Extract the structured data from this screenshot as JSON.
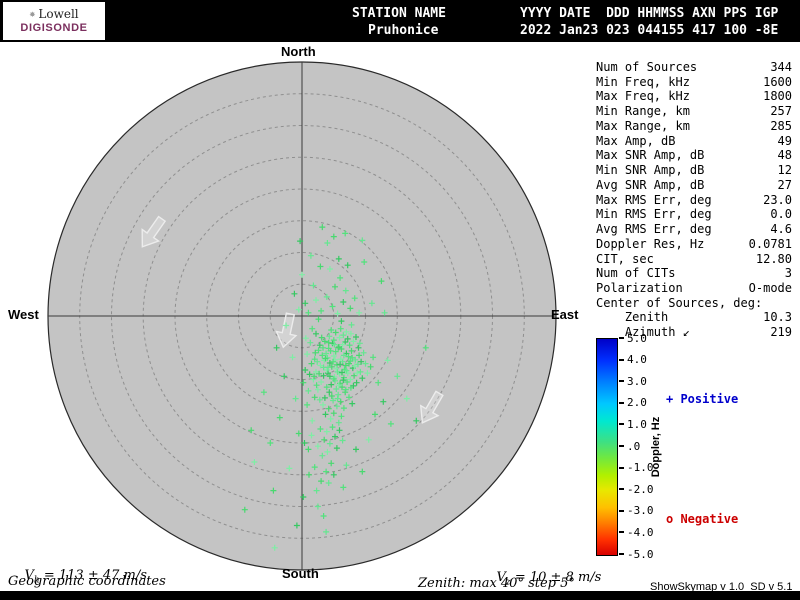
{
  "header": {
    "logo_line1": "Lowell",
    "logo_line2": "DIGISONDE",
    "station_label": "STATION NAME",
    "station_value": "Pruhonice",
    "time_label": "YYYY DATE  DDD HHMMSS AXN PPS IGP",
    "time_value": "2022 Jan23 023 044155 417 100 -8E"
  },
  "stats": {
    "rows": [
      {
        "label": "Num of Sources",
        "value": "344"
      },
      {
        "label": "Min Freq, kHz",
        "value": "1600"
      },
      {
        "label": "Max Freq, kHz",
        "value": "1800"
      },
      {
        "label": "Min Range, km",
        "value": "257"
      },
      {
        "label": "Max Range, km",
        "value": "285"
      },
      {
        "label": "Max Amp, dB",
        "value": "49"
      },
      {
        "label": "Max SNR Amp, dB",
        "value": "48"
      },
      {
        "label": "Min SNR Amp, dB",
        "value": "12"
      },
      {
        "label": "Avg SNR Amp, dB",
        "value": "27"
      },
      {
        "label": "Max RMS Err, deg",
        "value": "23.0"
      },
      {
        "label": "Min RMS Err, deg",
        "value": "0.0"
      },
      {
        "label": "Avg RMS Err, deg",
        "value": "4.6"
      },
      {
        "label": "Doppler Res, Hz",
        "value": "0.0781"
      },
      {
        "label": "CIT, sec",
        "value": "12.80"
      },
      {
        "label": "Num of CITs",
        "value": "3"
      },
      {
        "label": "Polarization",
        "value": "O-mode"
      },
      {
        "label": "Center of Sources, deg:",
        "value": ""
      },
      {
        "label": "    Zenith",
        "value": "10.3"
      },
      {
        "label": "    Azimuth ↙",
        "value": "219"
      }
    ]
  },
  "footer": {
    "vh_symbol": "V",
    "vh_sub": "h",
    "vh_value": "= 113 ± 47 m/s",
    "vz_symbol": "V",
    "vz_sub": "z",
    "vz_value": "= 10 ± 8 m/s",
    "coordinates_label": "Geographic coordinates",
    "zenith_range_label": "Zenith: max 40° step 5°",
    "version_label": "ShowSkymap v 1.0  SD v 5.1"
  },
  "chart_data": {
    "type": "scatter",
    "projection": "polar-skymap",
    "title": "",
    "compass": {
      "north": "North",
      "south": "South",
      "east": "East",
      "west": "West"
    },
    "zenith_max_deg": 40,
    "zenith_step_deg": 5,
    "marker": "+",
    "palette": [
      "#52e27c",
      "#7eeea4",
      "#36c862",
      "#65e690",
      "#48d96f"
    ],
    "colorbar": {
      "label": "Doppler, Hz",
      "min": -5.0,
      "max": 5.0,
      "ticks": [
        "5.0",
        "4.0",
        "3.0",
        "2.0",
        "1.0",
        ".0",
        "-1.0",
        "-2.0",
        "-3.0",
        "-4.0",
        "-5.0"
      ],
      "positive_label": "+ Positive",
      "negative_label": "o Negative",
      "positive_color": "#0000cc",
      "negative_color": "#cc0000"
    },
    "points_units": "degrees offset from zenith center [east, north]",
    "points": [
      [
        4.2,
        -5.1
      ],
      [
        5.0,
        -6.3
      ],
      [
        5.8,
        -4.9
      ],
      [
        6.4,
        -7.2
      ],
      [
        4.7,
        -8.0
      ],
      [
        5.3,
        -5.6
      ],
      [
        6.1,
        -6.8
      ],
      [
        7.0,
        -5.9
      ],
      [
        4.0,
        -6.6
      ],
      [
        5.5,
        -7.7
      ],
      [
        6.7,
        -8.4
      ],
      [
        5.9,
        -9.1
      ],
      [
        4.4,
        -7.4
      ],
      [
        3.8,
        -5.9
      ],
      [
        6.2,
        -5.2
      ],
      [
        7.3,
        -6.4
      ],
      [
        5.1,
        -9.6
      ],
      [
        4.8,
        -4.3
      ],
      [
        5.6,
        -8.8
      ],
      [
        6.9,
        -7.8
      ],
      [
        7.6,
        -7.1
      ],
      [
        3.5,
        -7.0
      ],
      [
        4.1,
        -9.0
      ],
      [
        5.2,
        -10.2
      ],
      [
        6.0,
        -10.6
      ],
      [
        6.6,
        -9.7
      ],
      [
        7.2,
        -9.0
      ],
      [
        8.0,
        -8.2
      ],
      [
        8.4,
        -6.9
      ],
      [
        7.8,
        -5.5
      ],
      [
        3.2,
        -6.2
      ],
      [
        3.9,
        -8.5
      ],
      [
        4.6,
        -10.8
      ],
      [
        5.4,
        -11.5
      ],
      [
        6.3,
        -11.2
      ],
      [
        7.1,
        -10.4
      ],
      [
        2.9,
        -7.8
      ],
      [
        3.4,
        -9.4
      ],
      [
        8.8,
        -7.6
      ],
      [
        8.2,
        -9.4
      ],
      [
        2.6,
        -5.4
      ],
      [
        3.0,
        -10.4
      ],
      [
        4.3,
        -12.0
      ],
      [
        5.7,
        -12.4
      ],
      [
        6.8,
        -12.0
      ],
      [
        7.7,
        -11.3
      ],
      [
        2.2,
        -8.8
      ],
      [
        8.6,
        -10.5
      ],
      [
        9.2,
        -8.8
      ],
      [
        9.0,
        -6.2
      ],
      [
        2.0,
        -6.8
      ],
      [
        2.5,
        -11.6
      ],
      [
        3.6,
        -12.9
      ],
      [
        4.9,
        -13.3
      ],
      [
        6.1,
        -13.5
      ],
      [
        7.4,
        -12.8
      ],
      [
        1.8,
        -10.0
      ],
      [
        9.5,
        -9.8
      ],
      [
        10.0,
        -7.5
      ],
      [
        1.5,
        -7.5
      ],
      [
        5.0,
        -3.8
      ],
      [
        5.9,
        -3.4
      ],
      [
        6.8,
        -4.1
      ],
      [
        4.3,
        -3.2
      ],
      [
        3.6,
        -4.0
      ],
      [
        7.5,
        -4.6
      ],
      [
        8.1,
        -4.0
      ],
      [
        2.8,
        -4.6
      ],
      [
        6.5,
        -3.0
      ],
      [
        5.3,
        -2.6
      ],
      [
        4.6,
        -2.2
      ],
      [
        7.0,
        -2.5
      ],
      [
        8.9,
        -5.0
      ],
      [
        9.7,
        -5.8
      ],
      [
        3.1,
        -3.4
      ],
      [
        2.3,
        -10.9
      ],
      [
        10.3,
        -9.0
      ],
      [
        1.2,
        -9.2
      ],
      [
        5.5,
        -14.2
      ],
      [
        4.2,
        -14.6
      ],
      [
        6.6,
        -14.5
      ],
      [
        3.3,
        -14.0
      ],
      [
        7.9,
        -13.8
      ],
      [
        2.8,
        -13.2
      ],
      [
        5.0,
        -15.3
      ],
      [
        6.2,
        -15.8
      ],
      [
        4.5,
        -16.2
      ],
      [
        3.7,
        -15.5
      ],
      [
        5.8,
        -16.8
      ],
      [
        10.8,
        -8.0
      ],
      [
        11.2,
        -6.5
      ],
      [
        0.8,
        -6.0
      ],
      [
        0.5,
        -8.5
      ],
      [
        1.0,
        -11.8
      ],
      [
        2.0,
        -12.8
      ],
      [
        4.5,
        -5.5
      ],
      [
        5.2,
        -6.9
      ],
      [
        6.0,
        -7.6
      ],
      [
        6.6,
        -6.2
      ],
      [
        5.7,
        -5.0
      ],
      [
        4.9,
        -7.2
      ],
      [
        5.4,
        -8.3
      ],
      [
        6.3,
        -8.9
      ],
      [
        4.1,
        -8.1
      ],
      [
        3.7,
        -6.7
      ],
      [
        5.0,
        -9.9
      ],
      [
        5.8,
        -10.9
      ],
      [
        6.5,
        -10.1
      ],
      [
        7.0,
        -8.6
      ],
      [
        7.4,
        -7.5
      ],
      [
        7.9,
        -6.6
      ],
      [
        8.3,
        -7.9
      ],
      [
        4.4,
        -9.5
      ],
      [
        3.4,
        -8.1
      ],
      [
        2.7,
        -9.1
      ],
      [
        6.9,
        -11.6
      ],
      [
        7.6,
        -10.0
      ],
      [
        8.1,
        -11.0
      ],
      [
        5.6,
        -13.0
      ],
      [
        4.7,
        -12.6
      ],
      [
        3.9,
        -11.2
      ],
      [
        6.4,
        -4.5
      ],
      [
        7.2,
        -3.6
      ],
      [
        5.1,
        -4.5
      ],
      [
        4.2,
        -4.2
      ],
      [
        3.3,
        -5.0
      ],
      [
        8.7,
        -9.0
      ],
      [
        9.3,
        -7.2
      ],
      [
        2.4,
        -7.2
      ],
      [
        1.9,
        -9.5
      ],
      [
        6.1,
        -2.0
      ],
      [
        7.7,
        -2.8
      ],
      [
        8.5,
        -3.3
      ],
      [
        9.1,
        -4.3
      ],
      [
        2.1,
        -5.8
      ],
      [
        4.8,
        -17.5
      ],
      [
        3.9,
        -18.2
      ],
      [
        5.2,
        -19.0
      ],
      [
        4.4,
        -20.1
      ],
      [
        3.5,
        -19.5
      ],
      [
        2.9,
        -17.8
      ],
      [
        4.0,
        -21.4
      ],
      [
        5.5,
        -20.8
      ],
      [
        3.2,
        -22.0
      ],
      [
        4.6,
        -23.2
      ],
      [
        3.8,
        -24.5
      ],
      [
        2.5,
        -20.5
      ],
      [
        5.0,
        -25.0
      ],
      [
        4.2,
        -26.3
      ],
      [
        3.0,
        -26.0
      ],
      [
        2.0,
        -23.8
      ],
      [
        1.5,
        -18.8
      ],
      [
        5.9,
        -18.0
      ],
      [
        6.4,
        -19.6
      ],
      [
        1.0,
        -21.0
      ],
      [
        4.8,
        1.5
      ],
      [
        5.6,
        0.4
      ],
      [
        6.5,
        2.2
      ],
      [
        3.9,
        3.0
      ],
      [
        5.2,
        4.6
      ],
      [
        6.0,
        6.0
      ],
      [
        4.4,
        7.4
      ],
      [
        5.8,
        9.0
      ],
      [
        6.9,
        4.0
      ],
      [
        7.6,
        1.2
      ],
      [
        3.0,
        0.8
      ],
      [
        2.2,
        2.5
      ],
      [
        7.2,
        8.0
      ],
      [
        4.0,
        11.5
      ],
      [
        5.0,
        12.5
      ],
      [
        8.3,
        2.8
      ],
      [
        9.0,
        0.5
      ],
      [
        6.2,
        -0.8
      ],
      [
        7.8,
        -1.4
      ],
      [
        2.6,
        -0.5
      ],
      [
        1.6,
        -2.0
      ],
      [
        0.6,
        -3.5
      ],
      [
        0.5,
        2.0
      ],
      [
        1.8,
        4.8
      ],
      [
        2.9,
        7.8
      ],
      [
        1.0,
        0.5
      ],
      [
        -0.5,
        1.0
      ],
      [
        2.2,
        -2.8
      ],
      [
        1.3,
        -4.2
      ],
      [
        0.2,
        -10.5
      ],
      [
        0.8,
        -14.0
      ],
      [
        1.6,
        -16.5
      ],
      [
        0.4,
        -20.0
      ],
      [
        2.3,
        -27.5
      ],
      [
        1.1,
        -25.0
      ],
      [
        3.4,
        -31.5
      ],
      [
        -1.5,
        -6.5
      ],
      [
        -2.8,
        -9.5
      ],
      [
        -1.0,
        -13.0
      ],
      [
        -3.5,
        -16.0
      ],
      [
        -5.0,
        -20.0
      ],
      [
        -2.0,
        -24.0
      ],
      [
        0.2,
        -28.5
      ],
      [
        2.5,
        -30.0
      ],
      [
        -4.5,
        -27.5
      ],
      [
        12.0,
        -10.5
      ],
      [
        13.5,
        -7.0
      ],
      [
        12.8,
        -13.5
      ],
      [
        15.0,
        -9.5
      ],
      [
        11.5,
        -15.5
      ],
      [
        14.0,
        -17.0
      ],
      [
        10.5,
        -19.5
      ],
      [
        8.5,
        -21.0
      ],
      [
        7.0,
        -23.5
      ],
      [
        9.5,
        -24.5
      ],
      [
        6.5,
        -27.0
      ],
      [
        16.5,
        -13.0
      ],
      [
        18.0,
        -16.5
      ],
      [
        11.0,
        2.0
      ],
      [
        12.5,
        5.5
      ],
      [
        9.8,
        8.5
      ],
      [
        0.0,
        6.5
      ],
      [
        -1.2,
        3.5
      ],
      [
        1.4,
        9.5
      ],
      [
        3.2,
        14.0
      ],
      [
        6.8,
        13.0
      ],
      [
        -2.5,
        -1.5
      ],
      [
        -4.0,
        -5.0
      ],
      [
        13.0,
        0.5
      ],
      [
        -0.5,
        -18.5
      ],
      [
        -6.0,
        -12.0
      ],
      [
        -7.5,
        -23.0
      ],
      [
        -0.8,
        -33.0
      ],
      [
        3.8,
        -34.0
      ],
      [
        -9.0,
        -30.5
      ],
      [
        19.5,
        -5.0
      ],
      [
        -4.3,
        -36.5
      ],
      [
        -0.3,
        11.8
      ],
      [
        9.5,
        11.9
      ],
      [
        -8.0,
        -18.0
      ]
    ],
    "arrows": [
      {
        "x": -23.6,
        "y": 13.1,
        "rot": 35
      },
      {
        "x": -2.4,
        "y": -2.3,
        "rot": 12
      },
      {
        "x": 20.3,
        "y": -14.5,
        "rot": 30
      }
    ]
  }
}
